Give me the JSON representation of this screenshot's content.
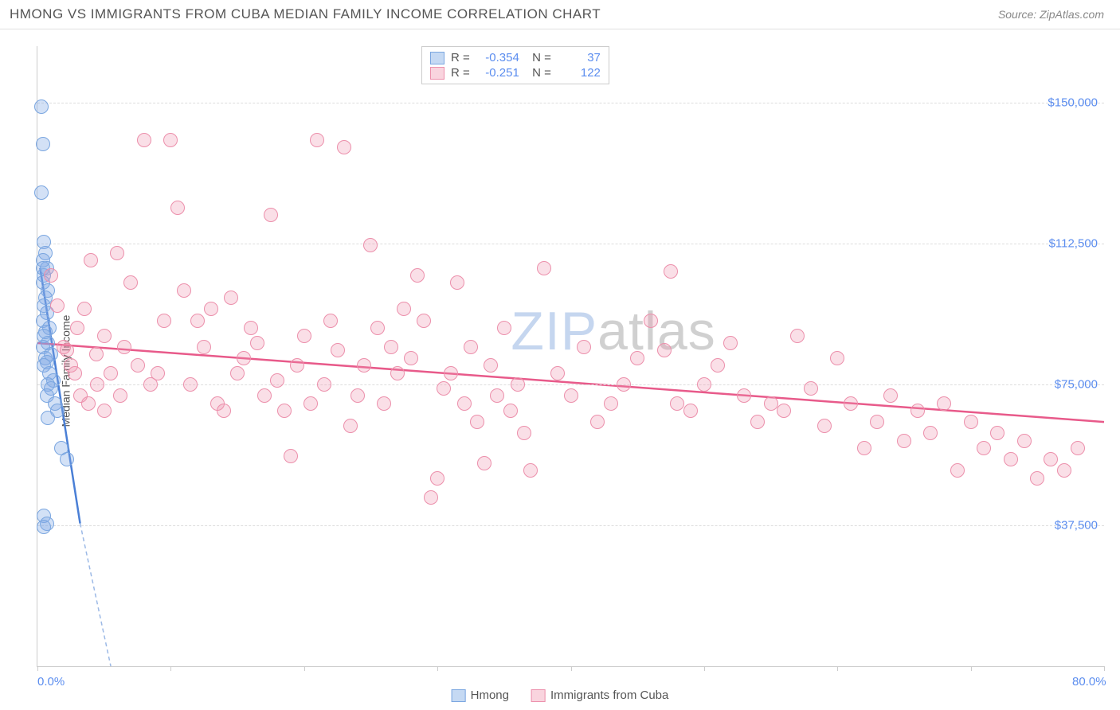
{
  "header": {
    "title": "HMONG VS IMMIGRANTS FROM CUBA MEDIAN FAMILY INCOME CORRELATION CHART",
    "source": "Source: ZipAtlas.com"
  },
  "watermark": {
    "part1": "ZIP",
    "part2": "atlas"
  },
  "chart": {
    "type": "scatter",
    "ylabel": "Median Family Income",
    "background_color": "#ffffff",
    "grid_color": "#dddddd",
    "axis_color": "#cccccc",
    "label_color": "#5b8def",
    "text_color": "#555555",
    "xlim": [
      0,
      80
    ],
    "ylim": [
      0,
      165000
    ],
    "xticks": [
      0,
      10,
      20,
      30,
      40,
      50,
      60,
      70,
      80
    ],
    "xtick_labels": {
      "0": "0.0%",
      "80": "80.0%"
    },
    "yticks": [
      37500,
      75000,
      112500,
      150000
    ],
    "ytick_labels": [
      "$37,500",
      "$75,000",
      "$112,500",
      "$150,000"
    ],
    "marker_radius": 9,
    "marker_stroke_width": 1.2,
    "series": [
      {
        "name": "Hmong",
        "fill": "rgba(130,170,230,0.35)",
        "stroke": "#7aa6e0",
        "swatch_fill": "#c5d9f3",
        "swatch_border": "#7aa6e0",
        "R": "-0.354",
        "N": "37",
        "trend": {
          "x1": 0.2,
          "y1": 106000,
          "x2": 3.2,
          "y2": 38000,
          "extend_x2": 5.5,
          "extend_y2": 0,
          "color": "#4a7fd6",
          "dash_color": "#9cb9e6"
        },
        "points": [
          [
            0.3,
            149000
          ],
          [
            0.4,
            139000
          ],
          [
            0.3,
            126000
          ],
          [
            0.5,
            113000
          ],
          [
            0.6,
            110000
          ],
          [
            0.4,
            108000
          ],
          [
            0.7,
            106000
          ],
          [
            0.5,
            104000
          ],
          [
            0.4,
            102000
          ],
          [
            0.8,
            100000
          ],
          [
            0.6,
            98000
          ],
          [
            0.5,
            96000
          ],
          [
            0.7,
            94000
          ],
          [
            0.4,
            92000
          ],
          [
            0.9,
            90000
          ],
          [
            0.6,
            89000
          ],
          [
            0.5,
            88000
          ],
          [
            0.8,
            86000
          ],
          [
            0.4,
            85000
          ],
          [
            1.0,
            83000
          ],
          [
            0.6,
            82000
          ],
          [
            0.7,
            81000
          ],
          [
            0.5,
            80000
          ],
          [
            0.9,
            78000
          ],
          [
            1.2,
            76000
          ],
          [
            0.8,
            75000
          ],
          [
            1.0,
            74000
          ],
          [
            0.7,
            72000
          ],
          [
            1.3,
            70000
          ],
          [
            1.5,
            68000
          ],
          [
            0.8,
            66000
          ],
          [
            1.8,
            58000
          ],
          [
            2.2,
            55000
          ],
          [
            0.5,
            40000
          ],
          [
            0.7,
            38000
          ],
          [
            0.5,
            37000
          ],
          [
            0.4,
            106000
          ]
        ]
      },
      {
        "name": "Immigrants from Cuba",
        "fill": "rgba(240,150,175,0.30)",
        "stroke": "#ec8fab",
        "swatch_fill": "#f9d4de",
        "swatch_border": "#ec8fab",
        "R": "-0.251",
        "N": "122",
        "trend": {
          "x1": 0,
          "y1": 86000,
          "x2": 80,
          "y2": 65000,
          "color": "#e85a8a"
        },
        "points": [
          [
            1.0,
            104000
          ],
          [
            1.5,
            96000
          ],
          [
            2.0,
            85000
          ],
          [
            2.2,
            84000
          ],
          [
            2.5,
            80000
          ],
          [
            2.8,
            78000
          ],
          [
            3.0,
            90000
          ],
          [
            3.2,
            72000
          ],
          [
            3.5,
            95000
          ],
          [
            3.8,
            70000
          ],
          [
            4.0,
            108000
          ],
          [
            4.4,
            83000
          ],
          [
            4.5,
            75000
          ],
          [
            5.0,
            88000
          ],
          [
            5.0,
            68000
          ],
          [
            5.5,
            78000
          ],
          [
            6.0,
            110000
          ],
          [
            6.2,
            72000
          ],
          [
            6.5,
            85000
          ],
          [
            7.0,
            102000
          ],
          [
            7.5,
            80000
          ],
          [
            8.0,
            140000
          ],
          [
            8.5,
            75000
          ],
          [
            9.0,
            78000
          ],
          [
            9.5,
            92000
          ],
          [
            10.0,
            140000
          ],
          [
            10.5,
            122000
          ],
          [
            11.0,
            100000
          ],
          [
            11.5,
            75000
          ],
          [
            12.0,
            92000
          ],
          [
            12.5,
            85000
          ],
          [
            13.0,
            95000
          ],
          [
            13.5,
            70000
          ],
          [
            14.0,
            68000
          ],
          [
            14.5,
            98000
          ],
          [
            15.0,
            78000
          ],
          [
            15.5,
            82000
          ],
          [
            16.0,
            90000
          ],
          [
            16.5,
            86000
          ],
          [
            17.0,
            72000
          ],
          [
            17.5,
            120000
          ],
          [
            18.0,
            76000
          ],
          [
            18.5,
            68000
          ],
          [
            19.0,
            56000
          ],
          [
            19.5,
            80000
          ],
          [
            20.0,
            88000
          ],
          [
            20.5,
            70000
          ],
          [
            21.0,
            140000
          ],
          [
            21.5,
            75000
          ],
          [
            22.0,
            92000
          ],
          [
            22.5,
            84000
          ],
          [
            23.0,
            138000
          ],
          [
            23.5,
            64000
          ],
          [
            24.0,
            72000
          ],
          [
            24.5,
            80000
          ],
          [
            25.0,
            112000
          ],
          [
            25.5,
            90000
          ],
          [
            26.0,
            70000
          ],
          [
            26.5,
            85000
          ],
          [
            27.0,
            78000
          ],
          [
            27.5,
            95000
          ],
          [
            28.0,
            82000
          ],
          [
            28.5,
            104000
          ],
          [
            29.0,
            92000
          ],
          [
            29.5,
            45000
          ],
          [
            30.0,
            50000
          ],
          [
            30.5,
            74000
          ],
          [
            31.0,
            78000
          ],
          [
            31.5,
            102000
          ],
          [
            32.0,
            70000
          ],
          [
            32.5,
            85000
          ],
          [
            33.0,
            65000
          ],
          [
            33.5,
            54000
          ],
          [
            34.0,
            80000
          ],
          [
            34.5,
            72000
          ],
          [
            35.0,
            90000
          ],
          [
            35.5,
            68000
          ],
          [
            36.0,
            75000
          ],
          [
            36.5,
            62000
          ],
          [
            37.0,
            52000
          ],
          [
            38.0,
            106000
          ],
          [
            39.0,
            78000
          ],
          [
            40.0,
            72000
          ],
          [
            41.0,
            85000
          ],
          [
            42.0,
            65000
          ],
          [
            43.0,
            70000
          ],
          [
            44.0,
            75000
          ],
          [
            45.0,
            82000
          ],
          [
            46.0,
            92000
          ],
          [
            47.0,
            84000
          ],
          [
            47.5,
            105000
          ],
          [
            48.0,
            70000
          ],
          [
            49.0,
            68000
          ],
          [
            50.0,
            75000
          ],
          [
            51.0,
            80000
          ],
          [
            52.0,
            86000
          ],
          [
            53.0,
            72000
          ],
          [
            54.0,
            65000
          ],
          [
            55.0,
            70000
          ],
          [
            56.0,
            68000
          ],
          [
            57.0,
            88000
          ],
          [
            58.0,
            74000
          ],
          [
            59.0,
            64000
          ],
          [
            60.0,
            82000
          ],
          [
            61.0,
            70000
          ],
          [
            62.0,
            58000
          ],
          [
            63.0,
            65000
          ],
          [
            64.0,
            72000
          ],
          [
            65.0,
            60000
          ],
          [
            66.0,
            68000
          ],
          [
            67.0,
            62000
          ],
          [
            68.0,
            70000
          ],
          [
            69.0,
            52000
          ],
          [
            70.0,
            65000
          ],
          [
            71.0,
            58000
          ],
          [
            72.0,
            62000
          ],
          [
            73.0,
            55000
          ],
          [
            74.0,
            60000
          ],
          [
            75.0,
            50000
          ],
          [
            76.0,
            55000
          ],
          [
            77.0,
            52000
          ],
          [
            78.0,
            58000
          ]
        ]
      }
    ]
  },
  "legend": {
    "s1_label": "Hmong",
    "s2_label": "Immigrants from Cuba"
  }
}
